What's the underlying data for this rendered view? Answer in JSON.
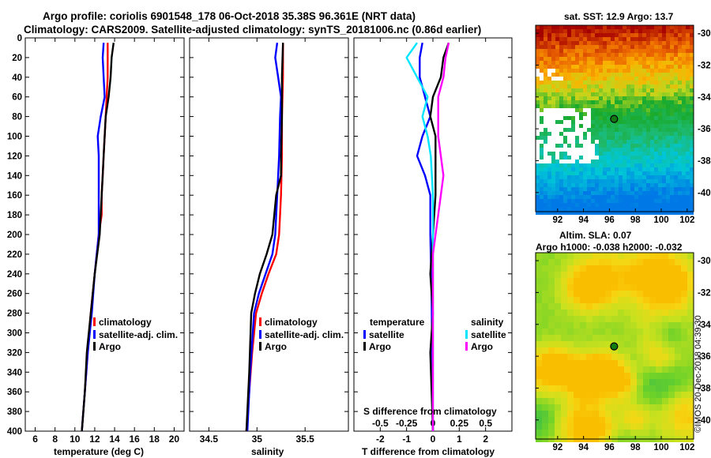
{
  "header": {
    "line1": "Argo profile: coriolis 6901548_178 06-Oct-2018 35.38S 96.361E (NRT data)",
    "line2": "Climatology: CARS2009. Satellite-adjusted climatology: synTS_20181006.nc (0.86d earlier)"
  },
  "credit": "©IMOS 20-Dec-2018 04:39:30",
  "colors": {
    "climatology": "#ff0000",
    "satellite": "#0000ff",
    "argo": "#000000",
    "satellite_salinity": "#00e5ff",
    "argo_salinity": "#ff00ff"
  },
  "chart_data": [
    {
      "type": "line",
      "id": "temperature",
      "xlabel": "temperature (deg C)",
      "ylabel": "",
      "xlim": [
        5,
        21
      ],
      "ylim": [
        400,
        0
      ],
      "xticks": [
        "6",
        "8",
        "10",
        "12",
        "14",
        "16",
        "18",
        "20"
      ],
      "xtick_values": [
        6,
        8,
        10,
        12,
        14,
        16,
        18,
        20
      ],
      "yticks": [
        "0",
        "20",
        "40",
        "60",
        "80",
        "100",
        "120",
        "140",
        "160",
        "180",
        "200",
        "220",
        "240",
        "260",
        "280",
        "300",
        "320",
        "340",
        "360",
        "380",
        "400"
      ],
      "legend": [
        "climatology",
        "satellite-adj. clim.",
        "Argo"
      ],
      "series": [
        {
          "name": "climatology",
          "color": "#ff0000",
          "x": [
            13.3,
            13.3,
            13.2,
            13.1,
            13.0,
            12.9,
            12.8,
            12.7,
            12.7,
            12.4,
            12.0,
            11.6,
            11.3,
            11.0,
            10.7
          ],
          "y": [
            5,
            40,
            60,
            80,
            100,
            120,
            140,
            160,
            180,
            200,
            240,
            280,
            320,
            360,
            400
          ]
        },
        {
          "name": "satellite-adj. clim.",
          "color": "#0000ff",
          "x": [
            12.9,
            12.8,
            12.9,
            13.0,
            12.6,
            12.3,
            12.4,
            12.4,
            12.4,
            12.4,
            12.4,
            12.0,
            11.7,
            11.3,
            11.0,
            10.7
          ],
          "y": [
            5,
            20,
            40,
            60,
            80,
            100,
            120,
            140,
            160,
            180,
            200,
            240,
            280,
            320,
            360,
            400
          ]
        },
        {
          "name": "Argo",
          "color": "#000000",
          "x": [
            13.9,
            13.7,
            13.6,
            13.4,
            13.1,
            13.0,
            12.9,
            12.8,
            12.7,
            12.5,
            12.0,
            11.6,
            11.2,
            11.0,
            10.7
          ],
          "y": [
            5,
            20,
            40,
            60,
            80,
            100,
            120,
            140,
            160,
            200,
            240,
            280,
            320,
            360,
            400
          ]
        }
      ]
    },
    {
      "type": "line",
      "id": "salinity",
      "xlabel": "salinity",
      "ylabel": "",
      "xlim": [
        34.3,
        35.95
      ],
      "ylim": [
        400,
        0
      ],
      "xticks": [
        "34.5",
        "35",
        "35.5"
      ],
      "xtick_values": [
        34.5,
        35,
        35.5
      ],
      "yticks": [],
      "legend": [
        "climatology",
        "satellite-adj. clim.",
        "Argo"
      ],
      "series": [
        {
          "name": "climatology",
          "color": "#ff0000",
          "x": [
            35.27,
            35.27,
            35.26,
            35.26,
            35.25,
            35.24,
            35.23,
            35.2,
            35.12,
            35.05,
            34.99,
            34.95,
            34.92,
            34.89
          ],
          "y": [
            5,
            40,
            80,
            120,
            160,
            180,
            200,
            220,
            240,
            260,
            280,
            320,
            360,
            400
          ]
        },
        {
          "name": "satellite-adj. clim.",
          "color": "#0000ff",
          "x": [
            35.21,
            35.19,
            35.22,
            35.25,
            35.24,
            35.23,
            35.21,
            35.19,
            35.16,
            35.09,
            35.02,
            34.97,
            34.93,
            34.9
          ],
          "y": [
            5,
            20,
            40,
            60,
            80,
            120,
            160,
            200,
            220,
            240,
            260,
            280,
            340,
            400
          ]
        },
        {
          "name": "Argo",
          "color": "#000000",
          "x": [
            35.27,
            35.26,
            35.26,
            35.25,
            35.25,
            35.2,
            35.18,
            35.16,
            35.1,
            35.03,
            34.98,
            34.94,
            34.92,
            34.89
          ],
          "y": [
            5,
            40,
            80,
            120,
            140,
            160,
            180,
            200,
            220,
            240,
            260,
            280,
            340,
            400
          ]
        }
      ]
    },
    {
      "type": "line",
      "id": "differences",
      "xlabel": "T difference from climatology",
      "xlabel_top": "S difference from climatology",
      "xlim": [
        -3,
        3
      ],
      "ylim": [
        400,
        0
      ],
      "xticks": [
        "-2",
        "-1",
        "0",
        "1",
        "2"
      ],
      "xtick_values": [
        -2,
        -1,
        0,
        1,
        2
      ],
      "sticks": [
        "-0.5",
        "-0.25",
        "0",
        "0.25",
        "0.5"
      ],
      "legend_temperature_title": "temperature",
      "legend_salinity_title": "salinity",
      "legend": [
        "satellite",
        "Argo",
        "satellite",
        "Argo"
      ],
      "series": [
        {
          "name": "satellite",
          "kind": "temperature",
          "color": "#0000ff",
          "x": [
            -0.4,
            -0.5,
            -0.5,
            -0.3,
            -0.1,
            -0.4,
            -0.6,
            -0.3,
            -0.1,
            -0.1,
            -0.05,
            0
          ],
          "y": [
            5,
            20,
            40,
            60,
            80,
            100,
            120,
            140,
            160,
            200,
            260,
            400
          ]
        },
        {
          "name": "Argo",
          "kind": "temperature",
          "color": "#000000",
          "x": [
            0.6,
            0.4,
            0.3,
            0.0,
            -0.1,
            0.1,
            0.1,
            0.1,
            0.0,
            -0.1,
            0.0,
            -0.1,
            0.0
          ],
          "y": [
            5,
            20,
            40,
            60,
            80,
            100,
            120,
            160,
            200,
            240,
            280,
            320,
            400
          ]
        },
        {
          "name": "satellite",
          "kind": "salinity",
          "color": "#00e5ff",
          "x": [
            -0.15,
            -0.25,
            -0.15,
            -0.05,
            -0.1,
            -0.05,
            -0.02,
            0.0,
            0.0,
            0.0,
            0.0,
            0.0
          ],
          "y": [
            5,
            20,
            40,
            60,
            80,
            100,
            120,
            160,
            200,
            260,
            320,
            400
          ]
        },
        {
          "name": "Argo",
          "kind": "salinity",
          "color": "#ff00ff",
          "x": [
            0.15,
            0.12,
            0.1,
            0.05,
            0.05,
            0.05,
            0.1,
            0.05,
            0.0,
            0.0,
            0.0,
            0.0,
            0.0
          ],
          "y": [
            5,
            20,
            40,
            60,
            80,
            100,
            140,
            180,
            220,
            260,
            300,
            340,
            400
          ]
        }
      ]
    }
  ],
  "maps": [
    {
      "id": "sst",
      "title": "sat. SST: 12.9 Argo: 13.7",
      "xticks": [
        "92",
        "94",
        "96",
        "98",
        "100",
        "102"
      ],
      "yticks": [
        "-30",
        "-32",
        "-34",
        "-36",
        "-38",
        "-40"
      ],
      "lon_range": [
        90.3,
        102.5
      ],
      "lat_range": [
        -41.2,
        -29.5
      ],
      "argo_lon": 96.361,
      "argo_lat": -35.38
    },
    {
      "id": "sla",
      "title_line1": "Altim. SLA: 0.07",
      "title_line2": "Argo h1000: -0.038 h2000: -0.032",
      "xticks": [
        "92",
        "94",
        "96",
        "98",
        "100",
        "102"
      ],
      "yticks": [
        "-30",
        "-32",
        "-34",
        "-36",
        "-38",
        "-40"
      ],
      "lon_range": [
        90.3,
        102.5
      ],
      "lat_range": [
        -41.2,
        -29.5
      ],
      "argo_lon": 96.361,
      "argo_lat": -35.38
    }
  ]
}
